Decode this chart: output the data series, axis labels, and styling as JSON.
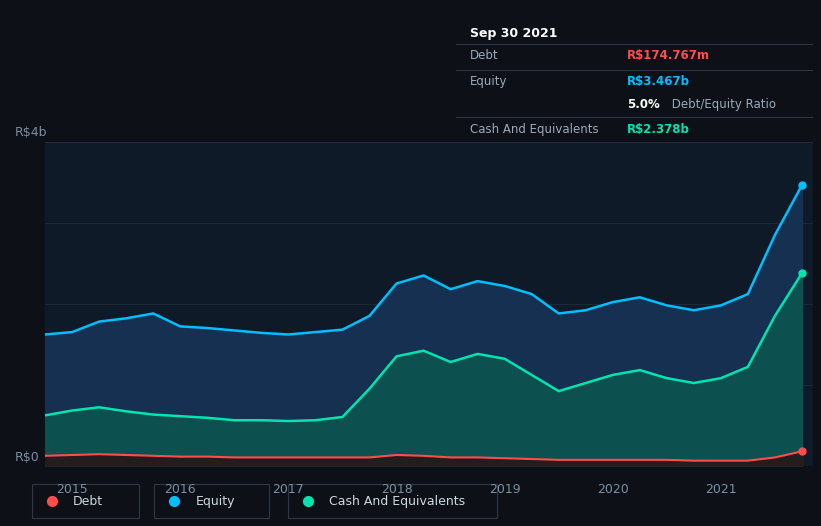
{
  "background_color": "#0d1117",
  "plot_bg_color": "#0e1a27",
  "title_box": {
    "date": "Sep 30 2021",
    "debt_label": "Debt",
    "debt_value": "R$174.767m",
    "debt_color": "#ff4d4d",
    "equity_label": "Equity",
    "equity_value": "R$3.467b",
    "equity_color": "#00bfff",
    "ratio_bold": "5.0%",
    "ratio_text": " Debt/Equity Ratio",
    "cash_label": "Cash And Equivalents",
    "cash_value": "R$2.378b",
    "cash_color": "#00e5b0"
  },
  "ylabel_top": "R$4b",
  "ylabel_bottom": "R$0",
  "x_ticks": [
    "2015",
    "2016",
    "2017",
    "2018",
    "2019",
    "2020",
    "2021"
  ],
  "legend": [
    {
      "label": "Debt",
      "color": "#ff4d4d"
    },
    {
      "label": "Equity",
      "color": "#00bfff"
    },
    {
      "label": "Cash And Equivalents",
      "color": "#00e5b0"
    }
  ],
  "equity_color": "#00bfff",
  "equity_fill": "#153050",
  "cash_fill": "#0d5050",
  "debt_color": "#ff4d4d",
  "debt_fill": "#2a1515",
  "grid_color": "#1e2d40",
  "equity_data": [
    [
      2014.75,
      1.62
    ],
    [
      2015.0,
      1.65
    ],
    [
      2015.25,
      1.78
    ],
    [
      2015.5,
      1.82
    ],
    [
      2015.75,
      1.88
    ],
    [
      2016.0,
      1.72
    ],
    [
      2016.25,
      1.7
    ],
    [
      2016.5,
      1.67
    ],
    [
      2016.75,
      1.64
    ],
    [
      2017.0,
      1.62
    ],
    [
      2017.25,
      1.65
    ],
    [
      2017.5,
      1.68
    ],
    [
      2017.75,
      1.85
    ],
    [
      2018.0,
      2.25
    ],
    [
      2018.25,
      2.35
    ],
    [
      2018.5,
      2.18
    ],
    [
      2018.75,
      2.28
    ],
    [
      2019.0,
      2.22
    ],
    [
      2019.25,
      2.12
    ],
    [
      2019.5,
      1.88
    ],
    [
      2019.75,
      1.92
    ],
    [
      2020.0,
      2.02
    ],
    [
      2020.25,
      2.08
    ],
    [
      2020.5,
      1.98
    ],
    [
      2020.75,
      1.92
    ],
    [
      2021.0,
      1.98
    ],
    [
      2021.25,
      2.12
    ],
    [
      2021.5,
      2.85
    ],
    [
      2021.75,
      3.467
    ]
  ],
  "cash_data": [
    [
      2014.75,
      0.62
    ],
    [
      2015.0,
      0.68
    ],
    [
      2015.25,
      0.72
    ],
    [
      2015.5,
      0.67
    ],
    [
      2015.75,
      0.63
    ],
    [
      2016.0,
      0.61
    ],
    [
      2016.25,
      0.59
    ],
    [
      2016.5,
      0.56
    ],
    [
      2016.75,
      0.56
    ],
    [
      2017.0,
      0.55
    ],
    [
      2017.25,
      0.56
    ],
    [
      2017.5,
      0.6
    ],
    [
      2017.75,
      0.95
    ],
    [
      2018.0,
      1.35
    ],
    [
      2018.25,
      1.42
    ],
    [
      2018.5,
      1.28
    ],
    [
      2018.75,
      1.38
    ],
    [
      2019.0,
      1.32
    ],
    [
      2019.25,
      1.12
    ],
    [
      2019.5,
      0.92
    ],
    [
      2019.75,
      1.02
    ],
    [
      2020.0,
      1.12
    ],
    [
      2020.25,
      1.18
    ],
    [
      2020.5,
      1.08
    ],
    [
      2020.75,
      1.02
    ],
    [
      2021.0,
      1.08
    ],
    [
      2021.25,
      1.22
    ],
    [
      2021.5,
      1.85
    ],
    [
      2021.75,
      2.378
    ]
  ],
  "debt_data": [
    [
      2014.75,
      0.12
    ],
    [
      2015.0,
      0.13
    ],
    [
      2015.25,
      0.14
    ],
    [
      2015.5,
      0.13
    ],
    [
      2015.75,
      0.12
    ],
    [
      2016.0,
      0.11
    ],
    [
      2016.25,
      0.11
    ],
    [
      2016.5,
      0.1
    ],
    [
      2016.75,
      0.1
    ],
    [
      2017.0,
      0.1
    ],
    [
      2017.25,
      0.1
    ],
    [
      2017.5,
      0.1
    ],
    [
      2017.75,
      0.1
    ],
    [
      2018.0,
      0.13
    ],
    [
      2018.25,
      0.12
    ],
    [
      2018.5,
      0.1
    ],
    [
      2018.75,
      0.1
    ],
    [
      2019.0,
      0.09
    ],
    [
      2019.25,
      0.08
    ],
    [
      2019.5,
      0.07
    ],
    [
      2019.75,
      0.07
    ],
    [
      2020.0,
      0.07
    ],
    [
      2020.25,
      0.07
    ],
    [
      2020.5,
      0.07
    ],
    [
      2020.75,
      0.06
    ],
    [
      2021.0,
      0.06
    ],
    [
      2021.25,
      0.06
    ],
    [
      2021.5,
      0.1
    ],
    [
      2021.75,
      0.1748
    ]
  ]
}
